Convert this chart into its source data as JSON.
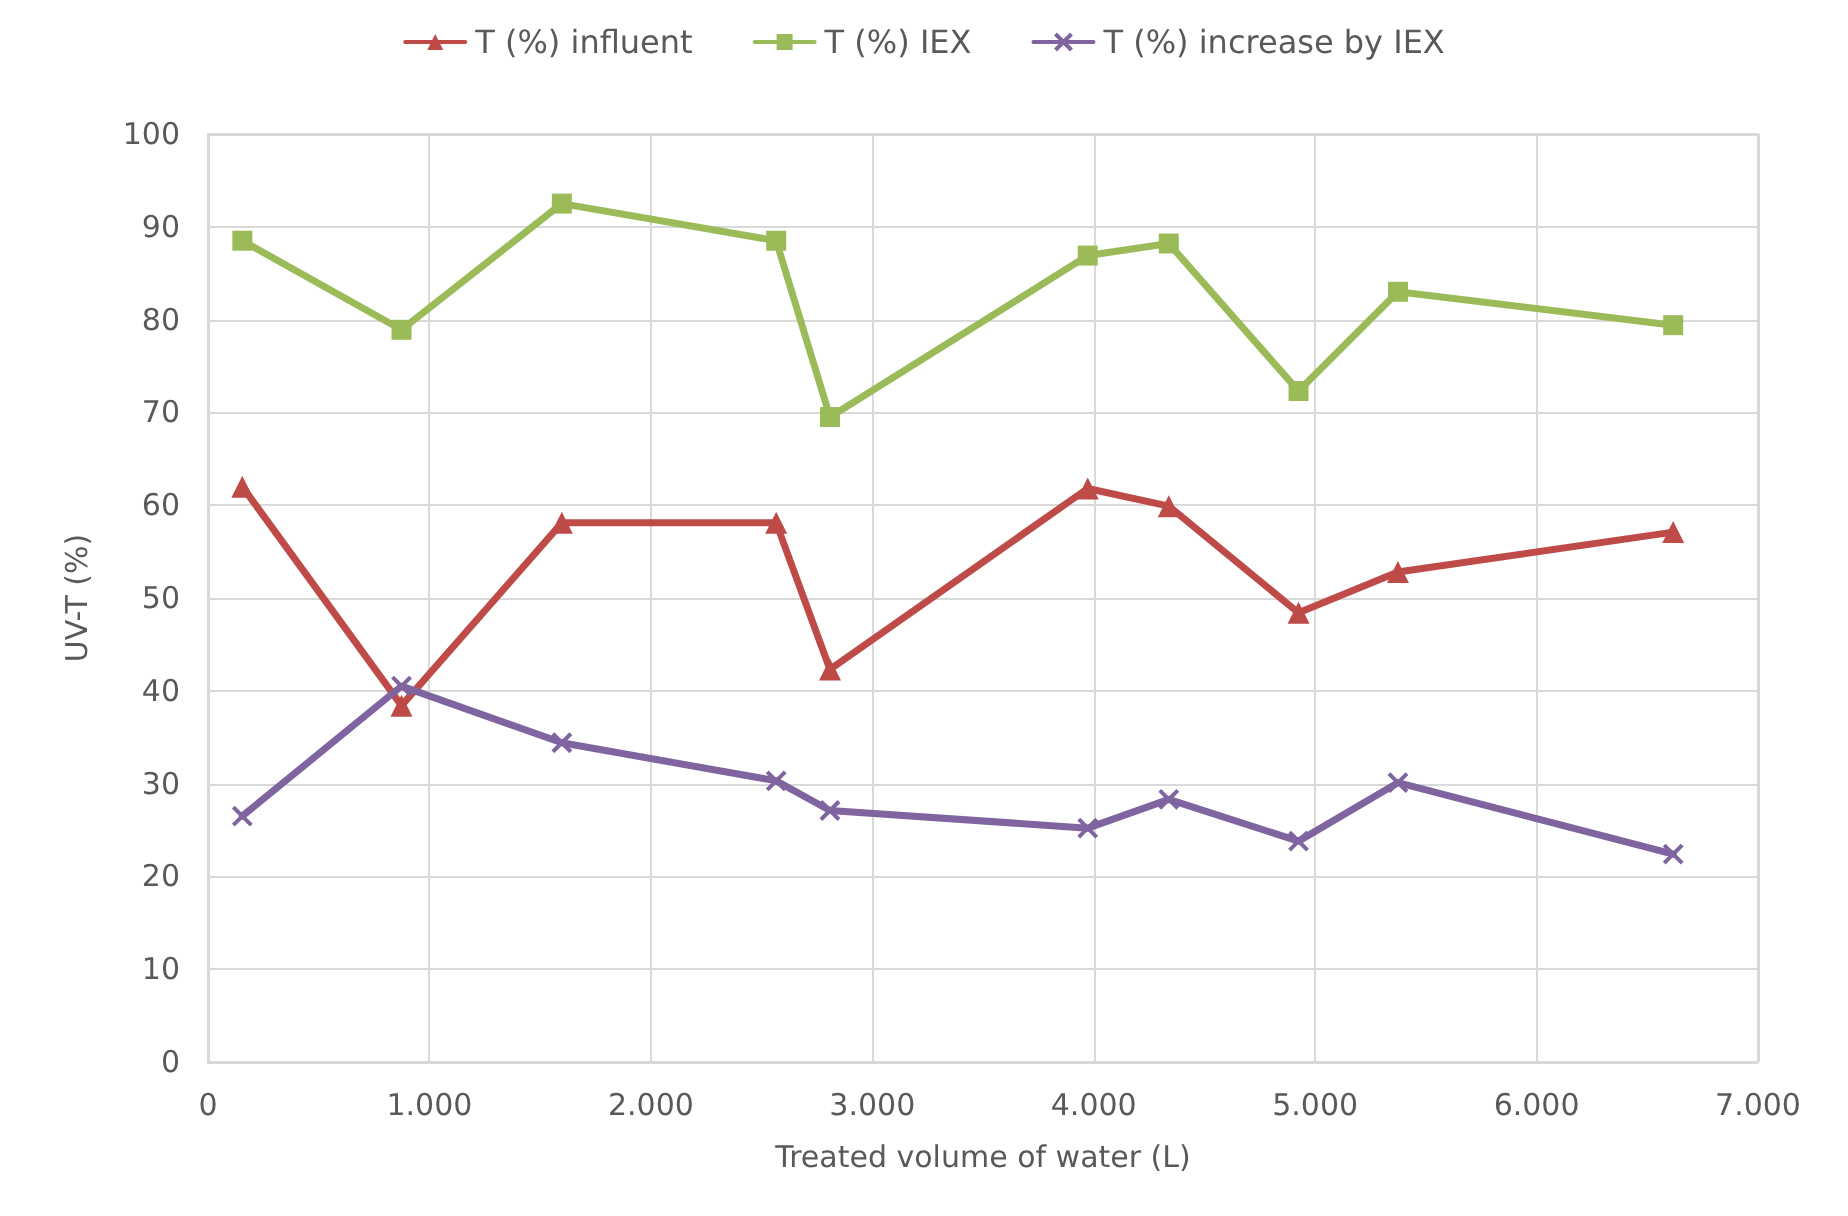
{
  "chart_data": {
    "type": "line",
    "xlabel": "Treated volume of water (L)",
    "ylabel": "UV-T (%)",
    "x": [
      155,
      874,
      1598,
      2566,
      2809,
      3973,
      4339,
      4925,
      5374,
      6617
    ],
    "series": [
      {
        "name": "T (%) influent",
        "color": "#be4b48",
        "marker": "triangle",
        "values": [
          62.0,
          38.4,
          58.1,
          58.1,
          42.3,
          61.8,
          59.9,
          48.4,
          52.8,
          57.1
        ]
      },
      {
        "name": "T (%) IEX",
        "color": "#9bbb59",
        "marker": "square",
        "values": [
          88.5,
          78.9,
          92.5,
          88.5,
          69.5,
          86.9,
          88.2,
          72.3,
          83.0,
          79.4
        ]
      },
      {
        "name": "T (%) increase by IEX",
        "color": "#7f64a0",
        "marker": "cross",
        "values": [
          26.5,
          40.5,
          34.4,
          30.3,
          27.1,
          25.2,
          28.3,
          23.8,
          30.1,
          22.4
        ]
      }
    ],
    "xlim": [
      0,
      7000
    ],
    "xticks": [
      0,
      {
        "value": 1000,
        "label": "1.000"
      },
      {
        "value": 2000,
        "label": "2.000"
      },
      {
        "value": 3000,
        "label": "3.000"
      },
      {
        "value": 4000,
        "label": "4.000"
      },
      {
        "value": 5000,
        "label": "5.000"
      },
      {
        "value": 6000,
        "label": "6.000"
      },
      {
        "value": 7000,
        "label": "7.000"
      }
    ],
    "ylim": [
      0,
      100
    ],
    "yticks": [
      0,
      10,
      20,
      30,
      40,
      50,
      60,
      70,
      80,
      90,
      100
    ],
    "grid": true,
    "legend": "top",
    "line_style": "solid"
  }
}
